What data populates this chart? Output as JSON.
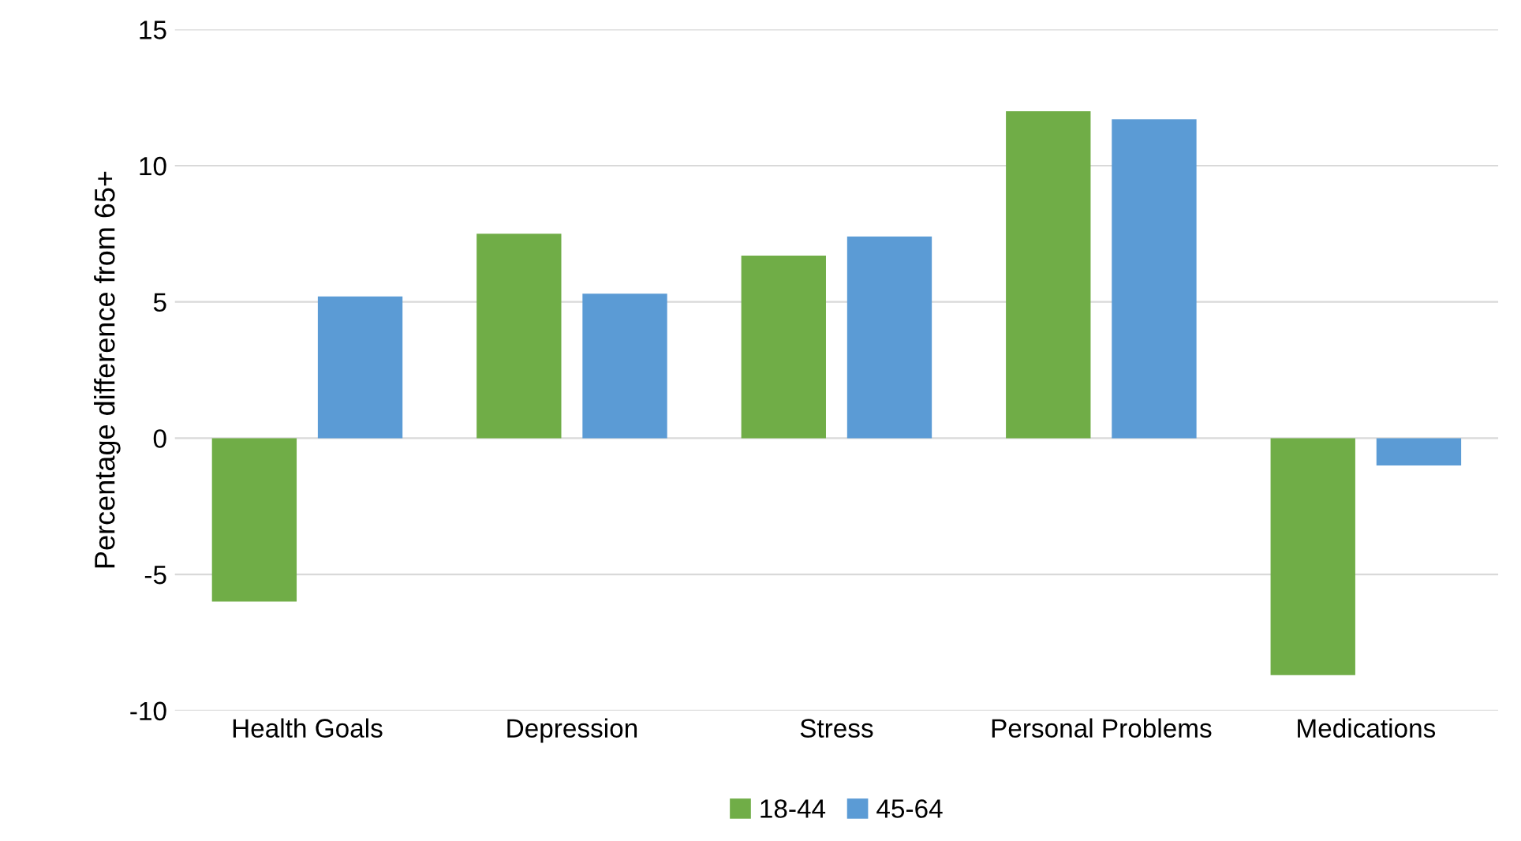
{
  "chart_data": {
    "type": "bar",
    "ylabel": "Percentage difference from 65+",
    "categories": [
      "Health Goals",
      "Depression",
      "Stress",
      "Personal Problems",
      "Medications"
    ],
    "series": [
      {
        "name": "18-44",
        "color": "#70ad47",
        "values": [
          -6.0,
          7.5,
          6.7,
          12.0,
          -8.7
        ]
      },
      {
        "name": "45-64",
        "color": "#5b9bd5",
        "values": [
          5.2,
          5.3,
          7.4,
          11.7,
          -1.0
        ]
      }
    ],
    "ylim": [
      -10,
      15
    ],
    "yticks": [
      -10,
      -5,
      0,
      5,
      10,
      15
    ],
    "grid": "y",
    "legend": "bottom"
  }
}
